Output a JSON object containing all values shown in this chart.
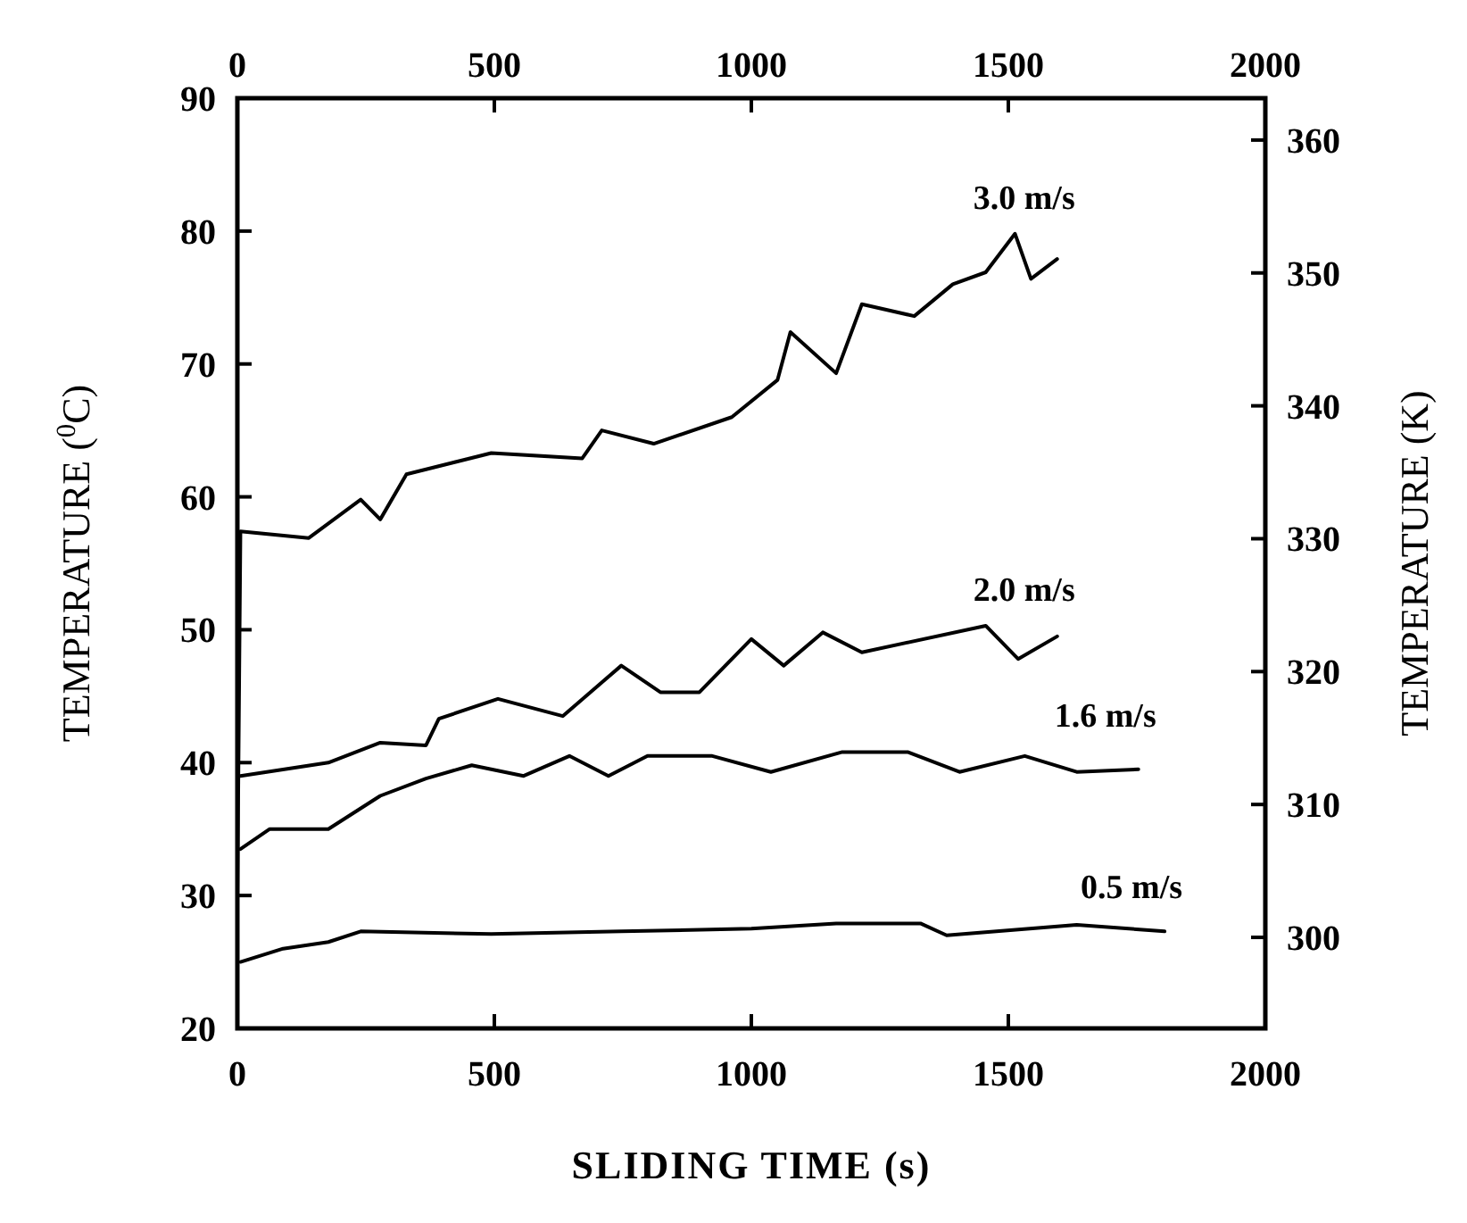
{
  "chart_data": {
    "type": "line",
    "xlabel": "SLIDING TIME (s)",
    "ylabel": "TEMPERATURE ($^{0}$C)",
    "y2label": "TEMPERATURE (K)",
    "xlim": [
      0,
      2000
    ],
    "xticks": [
      0,
      500,
      1000,
      1500,
      2000
    ],
    "x2lim": [
      0,
      2000
    ],
    "x2ticks": [
      0,
      500,
      1000,
      1500,
      2000
    ],
    "ylim": [
      20,
      90
    ],
    "yticks": [
      20,
      30,
      40,
      50,
      60,
      70,
      80,
      90
    ],
    "y2lim": [
      293.15,
      363.15
    ],
    "y2ticks": [
      300,
      310,
      320,
      330,
      340,
      350,
      360
    ],
    "grid": false,
    "line_style": "solid",
    "series": [
      {
        "name": "3.0 m/s",
        "color": "#000000",
        "x": [
          0,
          6,
          139,
          240,
          278,
          329,
          494,
          671,
          709,
          810,
          962,
          1051,
          1076,
          1165,
          1215,
          1317,
          1392,
          1456,
          1513,
          1544,
          1595
        ],
        "values": [
          30,
          57.4,
          56.9,
          59.8,
          58.3,
          61.7,
          63.3,
          62.9,
          65,
          64,
          66,
          68.8,
          72.4,
          69.3,
          74.5,
          73.6,
          76,
          76.9,
          79.8,
          76.4,
          77.9
        ]
      },
      {
        "name": "2.0 m/s",
        "color": "#000000",
        "x": [
          6,
          177,
          278,
          367,
          392,
          507,
          633,
          747,
          823,
          899,
          1000,
          1063,
          1139,
          1215,
          1456,
          1519,
          1595
        ],
        "values": [
          39,
          40,
          41.5,
          41.3,
          43.3,
          44.8,
          43.5,
          47.3,
          45.3,
          45.3,
          49.3,
          47.3,
          49.8,
          48.3,
          50.3,
          47.8,
          49.5
        ]
      },
      {
        "name": "1.6 m/s",
        "color": "#000000",
        "x": [
          6,
          63,
          177,
          278,
          367,
          456,
          557,
          646,
          722,
          798,
          924,
          1038,
          1177,
          1304,
          1405,
          1532,
          1633,
          1753
        ],
        "values": [
          33.5,
          35,
          35,
          37.5,
          38.8,
          39.8,
          39,
          40.5,
          39,
          40.5,
          40.5,
          39.3,
          40.8,
          40.8,
          39.3,
          40.5,
          39.3,
          39.5
        ]
      },
      {
        "name": "0.5 m/s",
        "color": "#000000",
        "x": [
          6,
          89,
          177,
          240,
          494,
          747,
          1000,
          1165,
          1329,
          1380,
          1633,
          1804
        ],
        "values": [
          25,
          26,
          26.5,
          27.3,
          27.1,
          27.3,
          27.5,
          27.9,
          27.9,
          27,
          27.8,
          27.3
        ]
      }
    ]
  }
}
